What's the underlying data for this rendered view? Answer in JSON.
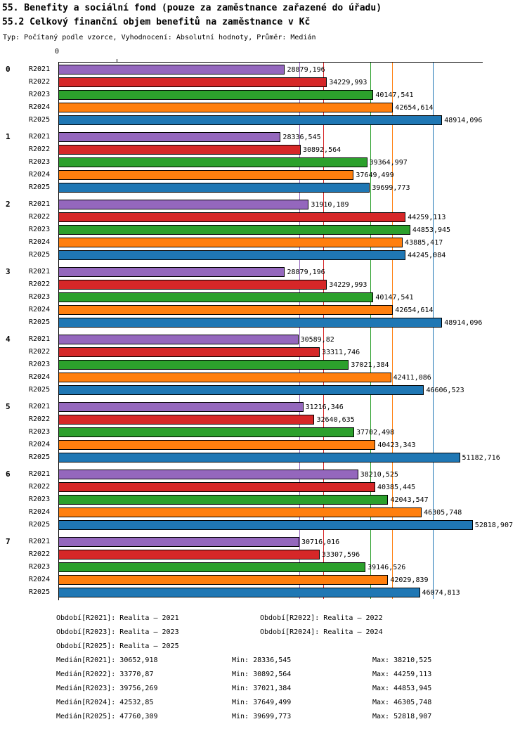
{
  "header": {
    "title_line1": "55. Benefity a sociální fond (pouze za zaměstnance zařazené do úřadu)",
    "title_line2": "55.2 Celkový finanční objem benefitů na zaměstnance v Kč",
    "meta": "Typ: Počítaný podle vzorce, Vyhodnocení: Absolutní hodnoty, Průměr: Medián"
  },
  "chart_data": {
    "type": "bar",
    "orientation": "horizontal",
    "title": "55.2 Celkový finanční objem benefitů na zaměstnance v Kč",
    "axis": {
      "zero_label": "0",
      "xmax": 54000
    },
    "grid": "median-lines-per-series",
    "legend_position": "bottom",
    "categories": [
      "0",
      "1",
      "2",
      "3",
      "4",
      "5",
      "6",
      "7"
    ],
    "series": [
      {
        "name": "R2021",
        "color": "#9467bd",
        "median": "30652,918",
        "values": [
          "28879,196",
          "28336,545",
          "31910,189",
          "28879,196",
          "30589,82",
          "31216,346",
          "38210,525",
          "30716,016"
        ]
      },
      {
        "name": "R2022",
        "color": "#d62728",
        "median": "33770,87",
        "values": [
          "34229,993",
          "30892,564",
          "44259,113",
          "34229,993",
          "33311,746",
          "32640,635",
          "40385,445",
          "33307,596"
        ]
      },
      {
        "name": "R2023",
        "color": "#2ca02c",
        "median": "39756,269",
        "values": [
          "40147,541",
          "39364,997",
          "44853,945",
          "40147,541",
          "37021,384",
          "37702,498",
          "42043,547",
          "39146,526"
        ]
      },
      {
        "name": "R2024",
        "color": "#ff7f0e",
        "median": "42532,85",
        "values": [
          "42654,614",
          "37649,499",
          "43885,417",
          "42654,614",
          "42411,086",
          "40423,343",
          "46305,748",
          "42029,839"
        ]
      },
      {
        "name": "R2025",
        "color": "#1f77b4",
        "median": "47760,309",
        "values": [
          "48914,096",
          "39699,773",
          "44245,084",
          "48914,096",
          "46606,523",
          "51182,716",
          "52818,907",
          "46074,813"
        ]
      }
    ]
  },
  "legend": {
    "items": [
      "Období[R2021]: Realita – 2021",
      "Období[R2022]: Realita – 2022",
      "Období[R2023]: Realita – 2023",
      "Období[R2024]: Realita – 2024",
      "Období[R2025]: Realita – 2025"
    ]
  },
  "stats": {
    "rows": [
      {
        "median": "Medián[R2021]: 30652,918",
        "min": "Min: 28336,545",
        "max": "Max: 38210,525"
      },
      {
        "median": "Medián[R2022]: 33770,87",
        "min": "Min: 30892,564",
        "max": "Max: 44259,113"
      },
      {
        "median": "Medián[R2023]: 39756,269",
        "min": "Min: 37021,384",
        "max": "Max: 44853,945"
      },
      {
        "median": "Medián[R2024]: 42532,85",
        "min": "Min: 37649,499",
        "max": "Max: 46305,748"
      },
      {
        "median": "Medián[R2025]: 47760,309",
        "min": "Min: 39699,773",
        "max": "Max: 52818,907"
      }
    ]
  }
}
